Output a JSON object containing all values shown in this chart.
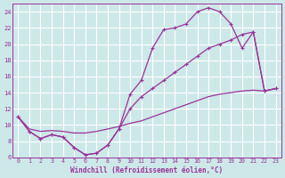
{
  "xlabel": "Windchill (Refroidissement éolien,°C)",
  "bg_color": "#cde8e8",
  "grid_color": "#ffffff",
  "line_color": "#993399",
  "xlim": [
    -0.5,
    23.5
  ],
  "ylim": [
    6,
    25
  ],
  "xticks": [
    0,
    1,
    2,
    3,
    4,
    5,
    6,
    7,
    8,
    9,
    10,
    11,
    12,
    13,
    14,
    15,
    16,
    17,
    18,
    19,
    20,
    21,
    22,
    23
  ],
  "yticks": [
    6,
    8,
    10,
    12,
    14,
    16,
    18,
    20,
    22,
    24
  ],
  "line1_x": [
    0,
    1,
    2,
    3,
    4,
    5,
    6,
    7,
    8,
    9,
    10,
    11,
    12,
    13,
    14,
    15,
    16,
    17,
    18,
    19,
    20,
    21,
    22,
    23
  ],
  "line1_y": [
    11,
    9.2,
    8.3,
    8.8,
    8.5,
    7.2,
    6.3,
    6.5,
    7.5,
    9.5,
    13.8,
    15.5,
    19.5,
    21.8,
    22.0,
    22.5,
    24.0,
    24.5,
    24.0,
    22.5,
    19.5,
    21.5,
    14.2,
    14.5
  ],
  "line2_x": [
    0,
    1,
    2,
    3,
    4,
    5,
    6,
    7,
    8,
    9,
    10,
    11,
    12,
    13,
    14,
    15,
    16,
    17,
    18,
    19,
    20,
    21,
    22,
    23
  ],
  "line2_y": [
    11,
    9.2,
    8.3,
    8.8,
    8.5,
    7.2,
    6.3,
    6.5,
    7.5,
    9.5,
    12.0,
    13.5,
    14.5,
    15.5,
    16.5,
    17.5,
    18.5,
    19.5,
    20.0,
    20.5,
    21.2,
    21.5,
    14.2,
    14.5
  ],
  "line3_x": [
    0,
    1,
    2,
    3,
    4,
    5,
    6,
    7,
    8,
    9,
    10,
    11,
    12,
    13,
    14,
    15,
    16,
    17,
    18,
    19,
    20,
    21,
    22,
    23
  ],
  "line3_y": [
    11,
    9.5,
    9.2,
    9.3,
    9.2,
    9.0,
    9.0,
    9.2,
    9.5,
    9.8,
    10.2,
    10.5,
    11.0,
    11.5,
    12.0,
    12.5,
    13.0,
    13.5,
    13.8,
    14.0,
    14.2,
    14.3,
    14.2,
    14.5
  ]
}
